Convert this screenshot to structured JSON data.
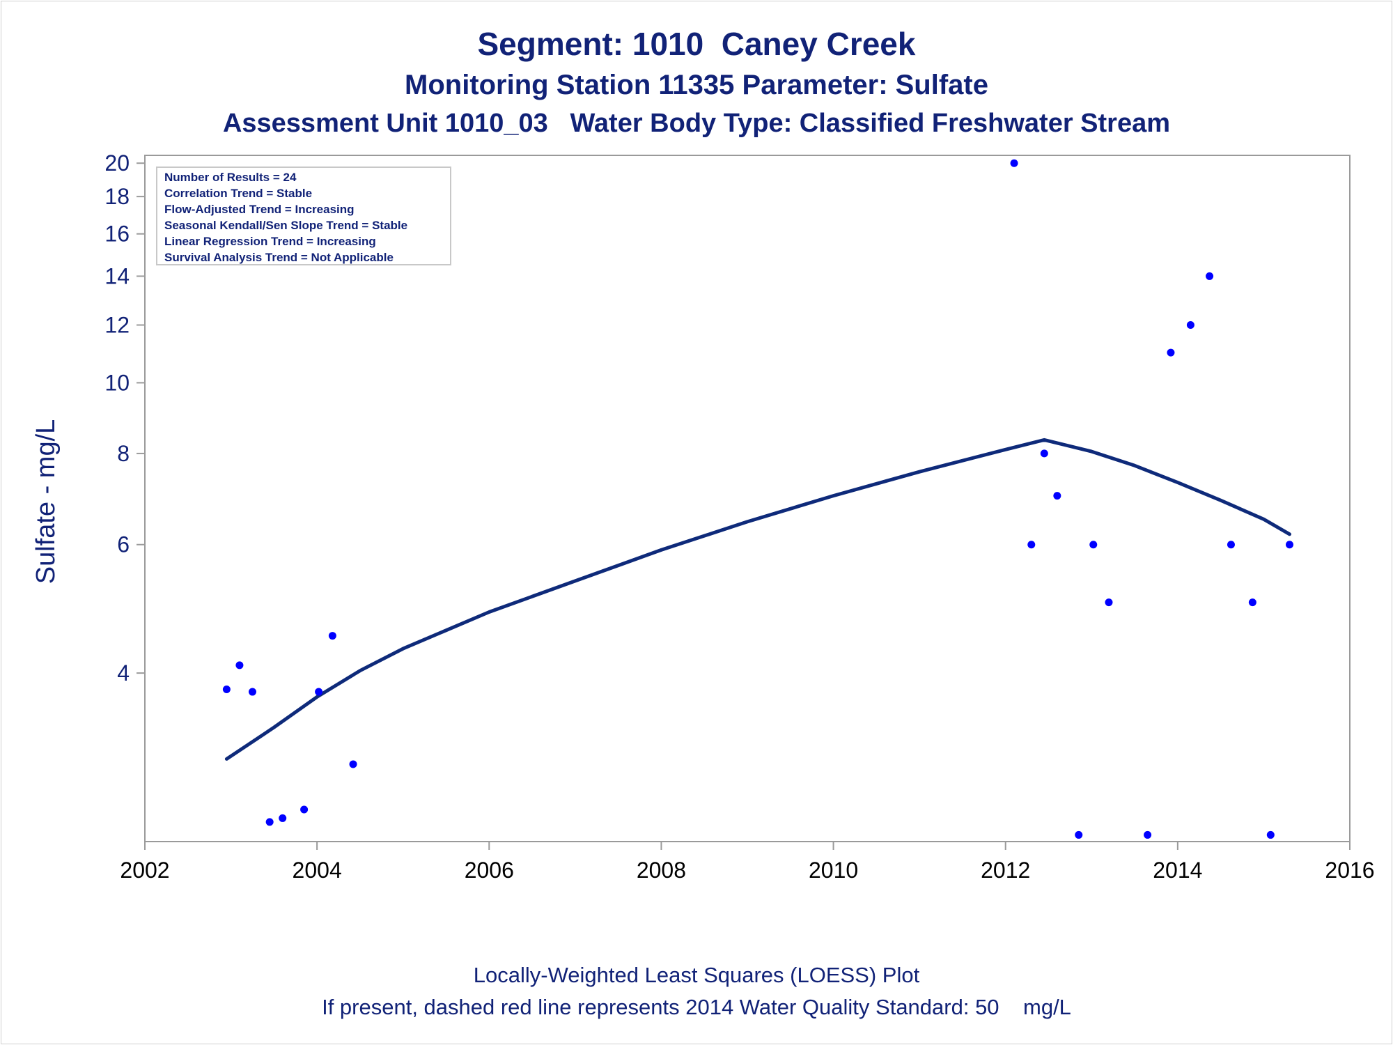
{
  "chart_data": {
    "type": "scatter",
    "title": "Segment: 1010  Caney Creek",
    "subtitle": "Monitoring Station 11335 Parameter: Sulfate",
    "subtitle2": "Assessment Unit 1010_03   Water Body Type: Classified Freshwater Stream",
    "xlabel": "",
    "ylabel": "Sulfate - mg/L",
    "footnote1": "Locally-Weighted Least Squares (LOESS) Plot",
    "footnote2": "If present, dashed red line represents 2014 Water Quality Standard: 50    mg/L",
    "xlim": [
      2002,
      2016
    ],
    "ylim": [
      2.35,
      20.5
    ],
    "y_scale": "log",
    "x_ticks": [
      2002,
      2004,
      2006,
      2008,
      2010,
      2012,
      2014,
      2016
    ],
    "y_ticks": [
      4,
      6,
      8,
      10,
      12,
      14,
      16,
      18,
      20
    ],
    "grid": false,
    "stats_box": [
      "Number of Results = 24",
      "Correlation Trend = Stable",
      "Flow-Adjusted Trend = Increasing",
      "Seasonal Kendall/Sen Slope Trend = Stable",
      "Linear Regression Trend = Increasing",
      "Survival Analysis Trend = Not Applicable"
    ],
    "points": [
      {
        "x": 2002.95,
        "y": 3.8
      },
      {
        "x": 2003.1,
        "y": 4.1
      },
      {
        "x": 2003.25,
        "y": 3.77
      },
      {
        "x": 2003.45,
        "y": 2.5
      },
      {
        "x": 2003.6,
        "y": 2.53
      },
      {
        "x": 2003.85,
        "y": 2.6
      },
      {
        "x": 2004.02,
        "y": 3.77
      },
      {
        "x": 2004.18,
        "y": 4.5
      },
      {
        "x": 2004.42,
        "y": 3.0
      },
      {
        "x": 2012.1,
        "y": 20
      },
      {
        "x": 2012.3,
        "y": 6
      },
      {
        "x": 2012.45,
        "y": 8
      },
      {
        "x": 2012.6,
        "y": 7
      },
      {
        "x": 2012.85,
        "y": 2.4
      },
      {
        "x": 2013.02,
        "y": 6
      },
      {
        "x": 2013.2,
        "y": 5
      },
      {
        "x": 2013.65,
        "y": 2.4
      },
      {
        "x": 2013.92,
        "y": 11
      },
      {
        "x": 2014.15,
        "y": 12
      },
      {
        "x": 2014.37,
        "y": 14
      },
      {
        "x": 2014.62,
        "y": 6
      },
      {
        "x": 2014.87,
        "y": 5
      },
      {
        "x": 2015.08,
        "y": 2.4
      },
      {
        "x": 2015.3,
        "y": 6
      }
    ],
    "loess": [
      {
        "x": 2002.95,
        "y": 3.05
      },
      {
        "x": 2003.5,
        "y": 3.37
      },
      {
        "x": 2004.0,
        "y": 3.71
      },
      {
        "x": 2004.5,
        "y": 4.03
      },
      {
        "x": 2005.0,
        "y": 4.32
      },
      {
        "x": 2006.0,
        "y": 4.85
      },
      {
        "x": 2007.0,
        "y": 5.35
      },
      {
        "x": 2008.0,
        "y": 5.9
      },
      {
        "x": 2009.0,
        "y": 6.45
      },
      {
        "x": 2010.0,
        "y": 7.0
      },
      {
        "x": 2011.0,
        "y": 7.55
      },
      {
        "x": 2012.0,
        "y": 8.1
      },
      {
        "x": 2012.45,
        "y": 8.35
      },
      {
        "x": 2013.0,
        "y": 8.05
      },
      {
        "x": 2013.5,
        "y": 7.7
      },
      {
        "x": 2014.0,
        "y": 7.3
      },
      {
        "x": 2014.5,
        "y": 6.9
      },
      {
        "x": 2015.0,
        "y": 6.5
      },
      {
        "x": 2015.3,
        "y": 6.2
      }
    ],
    "colors": {
      "text": "#112277",
      "points": "#0000ff",
      "loess": "#0e2a7a",
      "axis": "#9a9a9a"
    }
  }
}
